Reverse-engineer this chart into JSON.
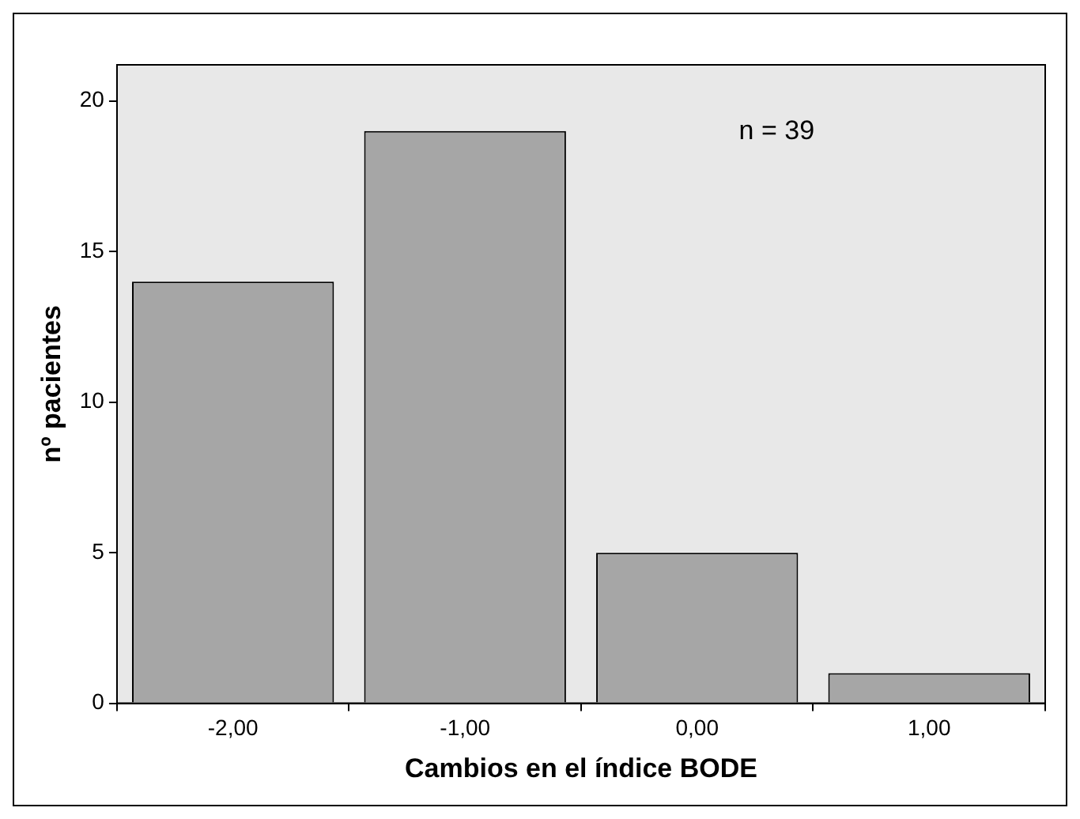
{
  "chart_data": {
    "type": "bar",
    "xlabel": "Cambios en el índice BODE",
    "ylabel": "nº pacientes",
    "categories": [
      "-2,00",
      "-1,00",
      "0,00",
      "1,00"
    ],
    "values": [
      14,
      19,
      5,
      1
    ],
    "color": "#a6a6a6",
    "ylim": [
      0,
      21.2
    ],
    "yticks": [
      0,
      5,
      10,
      15,
      20
    ],
    "grid": false,
    "legend": false,
    "annotations": [
      "n = 39"
    ]
  }
}
